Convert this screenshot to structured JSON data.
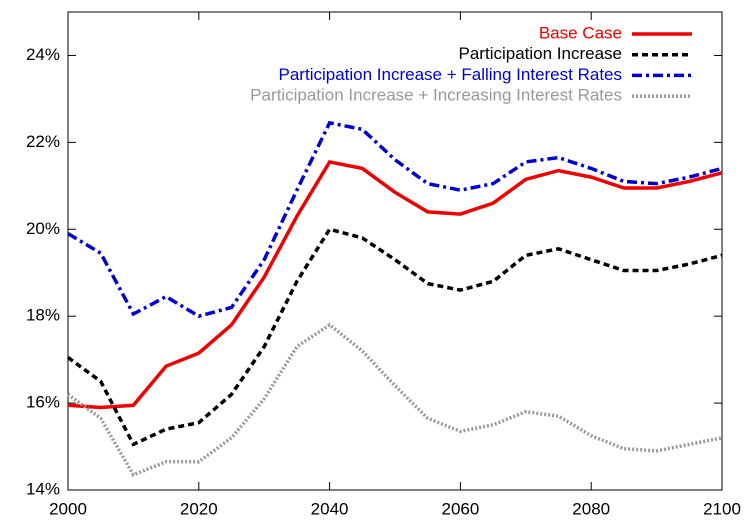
{
  "chart_data": {
    "type": "line",
    "x": [
      2000,
      2005,
      2010,
      2015,
      2020,
      2025,
      2030,
      2035,
      2040,
      2045,
      2050,
      2055,
      2060,
      2065,
      2070,
      2075,
      2080,
      2085,
      2090,
      2095,
      2100
    ],
    "series": [
      {
        "name": "Base Case",
        "color": "#ee0000",
        "dash": "solid",
        "values": [
          15.95,
          15.9,
          15.95,
          16.85,
          17.15,
          17.8,
          18.9,
          20.3,
          21.55,
          21.4,
          20.85,
          20.4,
          20.35,
          20.6,
          21.15,
          21.35,
          21.2,
          20.95,
          20.95,
          21.1,
          21.3
        ]
      },
      {
        "name": "Participation Increase",
        "color": "#000000",
        "dash": "dashed",
        "values": [
          17.05,
          16.5,
          15.05,
          15.4,
          15.55,
          16.2,
          17.3,
          18.8,
          20.0,
          19.8,
          19.3,
          18.75,
          18.6,
          18.8,
          19.4,
          19.55,
          19.3,
          19.05,
          19.05,
          19.2,
          19.4
        ]
      },
      {
        "name": "Participation Increase + Falling Interest Rates",
        "color": "#0000cc",
        "dash": "dashdot",
        "values": [
          19.9,
          19.45,
          18.05,
          18.45,
          18.0,
          18.2,
          19.3,
          20.9,
          22.45,
          22.3,
          21.6,
          21.05,
          20.9,
          21.05,
          21.55,
          21.65,
          21.4,
          21.1,
          21.05,
          21.2,
          21.4
        ]
      },
      {
        "name": "Participation Increase + Increasing Interest Rates",
        "color": "#999999",
        "dash": "dotted",
        "values": [
          16.2,
          15.65,
          14.35,
          14.65,
          14.65,
          15.2,
          16.1,
          17.3,
          17.8,
          17.2,
          16.4,
          15.65,
          15.35,
          15.5,
          15.8,
          15.7,
          15.25,
          14.95,
          14.9,
          15.05,
          15.2
        ]
      }
    ],
    "xlim": [
      2000,
      2100
    ],
    "xticks": [
      2000,
      2020,
      2040,
      2060,
      2080,
      2100
    ],
    "ylim": [
      14,
      25
    ],
    "yticks": [
      {
        "value": 14,
        "label": "14%"
      },
      {
        "value": 16,
        "label": "16%"
      },
      {
        "value": 18,
        "label": "18%"
      },
      {
        "value": 20,
        "label": "20%"
      },
      {
        "value": 22,
        "label": "22%"
      },
      {
        "value": 24,
        "label": "24%"
      }
    ],
    "legend": "top-right",
    "grid": false
  }
}
